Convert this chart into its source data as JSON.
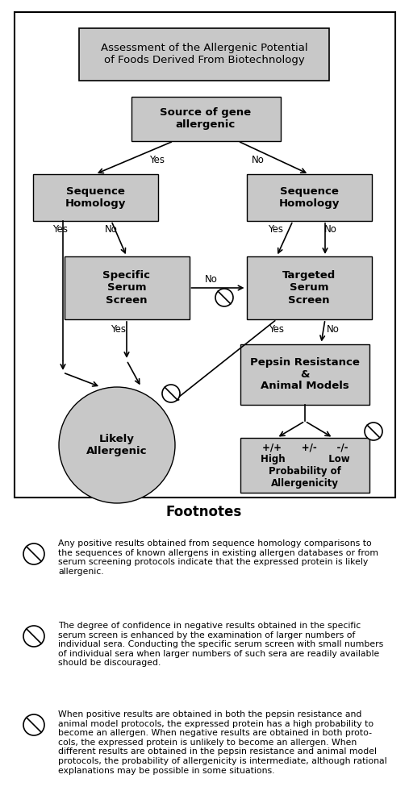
{
  "title": "Assessment of the Allergenic Potential\nof Foods Derived From Biotechnology",
  "box_facecolor": "#c8c8c8",
  "box_edgecolor": "#000000",
  "bg_color": "#ffffff",
  "footnotes_title": "Footnotes",
  "footnote1": "Any positive results obtained from sequence homology comparisons to\nthe sequences of known allergens in existing allergen databases or from\nserum screening protocols indicate that the expressed protein is likely\nallergenic.",
  "footnote2": "The degree of confidence in negative results obtained in the specific\nserum screen is enhanced by the examination of larger numbers of\nindividual sera. Conducting the specific serum screen with small numbers\nof individual sera when larger numbers of such sera are readily available\nshould be discouraged.",
  "footnote3": "When positive results are obtained in both the pepsin resistance and\nanimal model protocols, the expressed protein has a high probability to\nbecome an allergen. When negative results are obtained in both proto-\ncols, the expressed protein is unlikely to become an allergen. When\ndifferent results are obtained in the pepsin resistance and animal model\nprotocols, the probability of allergenicity is intermediate, although rational\nexplanations may be possible in some situations."
}
